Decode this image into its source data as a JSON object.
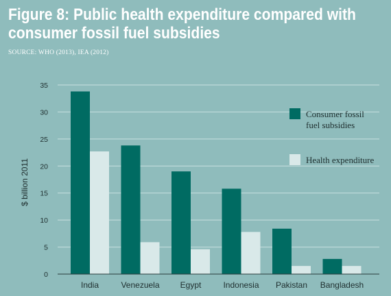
{
  "header": {
    "title_line1": "Figure 8: Public health expenditure compared with",
    "title_line2": "consumer fossil fuel subsidies",
    "source": "SOURCE: WHO (2013), IEA (2012)"
  },
  "colors": {
    "background": "#8fbcbc",
    "subsidies": "#006b62",
    "health": "#d9e9e9",
    "grid": "#c9e0e0"
  },
  "chart_data": {
    "type": "bar",
    "title": "Figure 8: Public health expenditure compared with consumer fossil fuel subsidies",
    "ylabel": "$ billion 2011",
    "xlabel": "",
    "ylim": [
      0,
      35
    ],
    "yticks": [
      0,
      5,
      10,
      15,
      20,
      25,
      30,
      35
    ],
    "grid": true,
    "legend_position": "right",
    "categories": [
      "India",
      "Venezuela",
      "Egypt",
      "Indonesia",
      "Pakistan",
      "Bangladesh"
    ],
    "series": [
      {
        "name_line1": "Consumer fossil",
        "name_line2": "fuel subsidies",
        "name": "Consumer fossil fuel subsidies",
        "color": "#006b62",
        "values": [
          33.8,
          23.8,
          19.0,
          15.8,
          8.4,
          2.8
        ]
      },
      {
        "name_line1": "Health expenditure",
        "name_line2": "",
        "name": "Health expenditure",
        "color": "#d9e9e9",
        "values": [
          22.7,
          5.9,
          4.6,
          7.8,
          1.5,
          1.5
        ]
      }
    ]
  }
}
